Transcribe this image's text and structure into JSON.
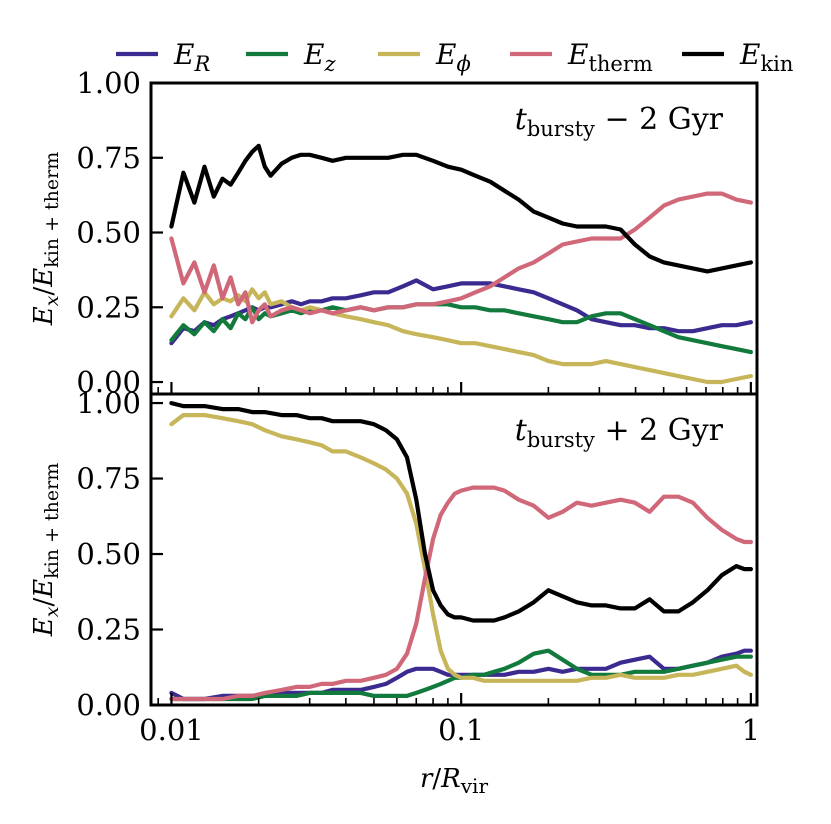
{
  "chart_data": [
    {
      "type": "line",
      "panel": "top",
      "annotation": {
        "main": "t",
        "sub": "bursty",
        "rest": " − 2 Gyr"
      },
      "ylabel": {
        "num": "E",
        "num_sub": "x",
        "den": "E",
        "den_sub": "kin + therm"
      },
      "xscale": "log",
      "xlim": [
        0.0085,
        1.05
      ],
      "ylim": [
        -0.04,
        1.0
      ],
      "yticks": [
        {
          "v": 0.0,
          "label": "0.00"
        },
        {
          "v": 0.25,
          "label": "0.25"
        },
        {
          "v": 0.5,
          "label": "0.50"
        },
        {
          "v": 0.75,
          "label": "0.75"
        },
        {
          "v": 1.0,
          "label": "1.00"
        }
      ],
      "x": [
        0.01,
        0.011,
        0.012,
        0.013,
        0.014,
        0.015,
        0.016,
        0.017,
        0.018,
        0.019,
        0.02,
        0.021,
        0.022,
        0.024,
        0.026,
        0.028,
        0.03,
        0.033,
        0.036,
        0.04,
        0.045,
        0.05,
        0.056,
        0.063,
        0.07,
        0.08,
        0.09,
        0.1,
        0.112,
        0.126,
        0.141,
        0.158,
        0.178,
        0.2,
        0.224,
        0.251,
        0.282,
        0.316,
        0.355,
        0.398,
        0.447,
        0.501,
        0.562,
        0.631,
        0.708,
        0.794,
        0.891,
        1.0
      ],
      "series": [
        {
          "name": "E_R",
          "color": "#3b2a8f",
          "values": [
            0.13,
            0.18,
            0.17,
            0.2,
            0.19,
            0.21,
            0.22,
            0.23,
            0.24,
            0.25,
            0.24,
            0.25,
            0.25,
            0.26,
            0.27,
            0.26,
            0.27,
            0.27,
            0.28,
            0.28,
            0.29,
            0.3,
            0.3,
            0.32,
            0.34,
            0.31,
            0.32,
            0.33,
            0.33,
            0.33,
            0.32,
            0.31,
            0.3,
            0.28,
            0.26,
            0.24,
            0.21,
            0.2,
            0.19,
            0.19,
            0.18,
            0.18,
            0.17,
            0.17,
            0.18,
            0.19,
            0.19,
            0.2
          ]
        },
        {
          "name": "E_z",
          "color": "#127a3c",
          "values": [
            0.14,
            0.19,
            0.16,
            0.2,
            0.17,
            0.21,
            0.18,
            0.23,
            0.21,
            0.25,
            0.21,
            0.23,
            0.22,
            0.23,
            0.24,
            0.23,
            0.24,
            0.24,
            0.25,
            0.24,
            0.25,
            0.24,
            0.25,
            0.25,
            0.26,
            0.26,
            0.26,
            0.25,
            0.25,
            0.24,
            0.24,
            0.23,
            0.22,
            0.21,
            0.2,
            0.2,
            0.22,
            0.23,
            0.23,
            0.21,
            0.19,
            0.17,
            0.15,
            0.14,
            0.13,
            0.12,
            0.11,
            0.1
          ]
        },
        {
          "name": "E_phi",
          "color": "#c7b55a",
          "values": [
            0.22,
            0.28,
            0.24,
            0.3,
            0.26,
            0.28,
            0.27,
            0.29,
            0.27,
            0.31,
            0.28,
            0.3,
            0.26,
            0.27,
            0.25,
            0.24,
            0.25,
            0.24,
            0.23,
            0.22,
            0.21,
            0.2,
            0.19,
            0.17,
            0.16,
            0.15,
            0.14,
            0.13,
            0.13,
            0.12,
            0.11,
            0.1,
            0.09,
            0.07,
            0.06,
            0.06,
            0.06,
            0.07,
            0.06,
            0.05,
            0.04,
            0.03,
            0.02,
            0.01,
            0.0,
            0.0,
            0.01,
            0.02
          ]
        },
        {
          "name": "E_therm",
          "color": "#d1687a",
          "values": [
            0.48,
            0.33,
            0.4,
            0.3,
            0.39,
            0.28,
            0.35,
            0.26,
            0.3,
            0.2,
            0.24,
            0.26,
            0.22,
            0.24,
            0.25,
            0.24,
            0.23,
            0.24,
            0.23,
            0.24,
            0.25,
            0.24,
            0.25,
            0.25,
            0.26,
            0.26,
            0.27,
            0.28,
            0.3,
            0.32,
            0.35,
            0.38,
            0.4,
            0.43,
            0.46,
            0.47,
            0.48,
            0.48,
            0.48,
            0.51,
            0.55,
            0.59,
            0.61,
            0.62,
            0.63,
            0.63,
            0.61,
            0.6
          ]
        },
        {
          "name": "E_kin",
          "color": "#000000",
          "values": [
            0.52,
            0.7,
            0.6,
            0.72,
            0.62,
            0.68,
            0.66,
            0.7,
            0.74,
            0.77,
            0.79,
            0.72,
            0.69,
            0.73,
            0.75,
            0.76,
            0.76,
            0.75,
            0.74,
            0.75,
            0.75,
            0.75,
            0.75,
            0.76,
            0.76,
            0.74,
            0.72,
            0.71,
            0.69,
            0.67,
            0.64,
            0.61,
            0.57,
            0.55,
            0.53,
            0.52,
            0.52,
            0.52,
            0.51,
            0.46,
            0.42,
            0.4,
            0.39,
            0.38,
            0.37,
            0.38,
            0.39,
            0.4
          ]
        }
      ]
    },
    {
      "type": "line",
      "panel": "bottom",
      "annotation": {
        "main": "t",
        "sub": "bursty",
        "rest": " + 2 Gyr"
      },
      "ylabel": {
        "num": "E",
        "num_sub": "x",
        "den": "E",
        "den_sub": "kin + therm"
      },
      "xlabel": {
        "main": "r",
        "sep": "/",
        "var": "R",
        "sub": "vir"
      },
      "xscale": "log",
      "xlim": [
        0.0085,
        1.05
      ],
      "ylim": [
        0.0,
        1.03
      ],
      "xticks": [
        {
          "v": 0.01,
          "label": "0.01"
        },
        {
          "v": 0.1,
          "label": "0.1"
        },
        {
          "v": 1.0,
          "label": "1"
        }
      ],
      "yticks": [
        {
          "v": 0.0,
          "label": "0.00"
        },
        {
          "v": 0.25,
          "label": "0.25"
        },
        {
          "v": 0.5,
          "label": "0.50"
        },
        {
          "v": 0.75,
          "label": "0.75"
        },
        {
          "v": 1.0,
          "label": "1.00"
        }
      ],
      "x": [
        0.01,
        0.011,
        0.012,
        0.013,
        0.015,
        0.017,
        0.019,
        0.021,
        0.024,
        0.027,
        0.03,
        0.033,
        0.036,
        0.04,
        0.045,
        0.05,
        0.055,
        0.06,
        0.065,
        0.07,
        0.075,
        0.08,
        0.085,
        0.09,
        0.095,
        0.1,
        0.11,
        0.12,
        0.13,
        0.141,
        0.158,
        0.178,
        0.2,
        0.224,
        0.251,
        0.282,
        0.316,
        0.355,
        0.398,
        0.447,
        0.501,
        0.562,
        0.631,
        0.708,
        0.794,
        0.891,
        0.95,
        1.0
      ],
      "series": [
        {
          "name": "E_R",
          "color": "#3b2a8f",
          "values": [
            0.04,
            0.02,
            0.02,
            0.02,
            0.03,
            0.03,
            0.03,
            0.03,
            0.04,
            0.04,
            0.04,
            0.04,
            0.05,
            0.05,
            0.05,
            0.06,
            0.07,
            0.09,
            0.11,
            0.12,
            0.12,
            0.12,
            0.11,
            0.1,
            0.1,
            0.1,
            0.1,
            0.1,
            0.1,
            0.1,
            0.11,
            0.11,
            0.12,
            0.11,
            0.12,
            0.12,
            0.12,
            0.14,
            0.15,
            0.16,
            0.12,
            0.12,
            0.13,
            0.14,
            0.16,
            0.17,
            0.18,
            0.18
          ]
        },
        {
          "name": "E_z",
          "color": "#127a3c",
          "values": [
            0.02,
            0.02,
            0.02,
            0.02,
            0.02,
            0.02,
            0.02,
            0.03,
            0.03,
            0.03,
            0.04,
            0.04,
            0.04,
            0.04,
            0.04,
            0.03,
            0.03,
            0.03,
            0.03,
            0.04,
            0.05,
            0.06,
            0.07,
            0.08,
            0.09,
            0.09,
            0.1,
            0.1,
            0.11,
            0.12,
            0.14,
            0.17,
            0.18,
            0.15,
            0.12,
            0.1,
            0.1,
            0.1,
            0.11,
            0.11,
            0.11,
            0.12,
            0.13,
            0.14,
            0.15,
            0.16,
            0.16,
            0.16
          ]
        },
        {
          "name": "E_phi",
          "color": "#c7b55a",
          "values": [
            0.93,
            0.96,
            0.96,
            0.96,
            0.95,
            0.94,
            0.93,
            0.91,
            0.89,
            0.88,
            0.87,
            0.86,
            0.84,
            0.84,
            0.82,
            0.8,
            0.78,
            0.75,
            0.7,
            0.6,
            0.45,
            0.3,
            0.18,
            0.12,
            0.1,
            0.09,
            0.09,
            0.08,
            0.08,
            0.08,
            0.08,
            0.08,
            0.08,
            0.08,
            0.08,
            0.09,
            0.09,
            0.1,
            0.09,
            0.09,
            0.09,
            0.1,
            0.1,
            0.11,
            0.12,
            0.13,
            0.11,
            0.1
          ]
        },
        {
          "name": "E_therm",
          "color": "#d1687a",
          "values": [
            0.02,
            0.02,
            0.02,
            0.02,
            0.02,
            0.03,
            0.03,
            0.04,
            0.05,
            0.06,
            0.06,
            0.07,
            0.07,
            0.08,
            0.08,
            0.09,
            0.1,
            0.12,
            0.17,
            0.27,
            0.42,
            0.55,
            0.63,
            0.67,
            0.7,
            0.71,
            0.72,
            0.72,
            0.72,
            0.71,
            0.68,
            0.66,
            0.62,
            0.64,
            0.67,
            0.66,
            0.67,
            0.68,
            0.67,
            0.64,
            0.69,
            0.69,
            0.67,
            0.62,
            0.58,
            0.55,
            0.54,
            0.54
          ]
        },
        {
          "name": "E_kin",
          "color": "#000000",
          "values": [
            1.0,
            0.99,
            0.99,
            0.99,
            0.98,
            0.98,
            0.97,
            0.97,
            0.96,
            0.96,
            0.95,
            0.95,
            0.94,
            0.94,
            0.94,
            0.93,
            0.91,
            0.88,
            0.82,
            0.68,
            0.5,
            0.38,
            0.33,
            0.3,
            0.29,
            0.29,
            0.28,
            0.28,
            0.28,
            0.29,
            0.31,
            0.34,
            0.38,
            0.36,
            0.34,
            0.33,
            0.33,
            0.32,
            0.32,
            0.35,
            0.31,
            0.31,
            0.34,
            0.38,
            0.43,
            0.46,
            0.45,
            0.45
          ]
        }
      ]
    }
  ],
  "legend": {
    "position": "top",
    "entries": [
      {
        "key": "E_R",
        "base": "E",
        "sub": "R",
        "sub_italic": true,
        "color": "#3b2a8f"
      },
      {
        "key": "E_z",
        "base": "E",
        "sub": "z",
        "sub_italic": true,
        "color": "#127a3c"
      },
      {
        "key": "E_phi",
        "base": "E",
        "sub": "ϕ",
        "sub_italic": true,
        "color": "#c7b55a"
      },
      {
        "key": "E_therm",
        "base": "E",
        "sub": "therm",
        "sub_italic": false,
        "color": "#d1687a"
      },
      {
        "key": "E_kin",
        "base": "E",
        "sub": "kin",
        "sub_italic": false,
        "color": "#000000"
      }
    ]
  }
}
